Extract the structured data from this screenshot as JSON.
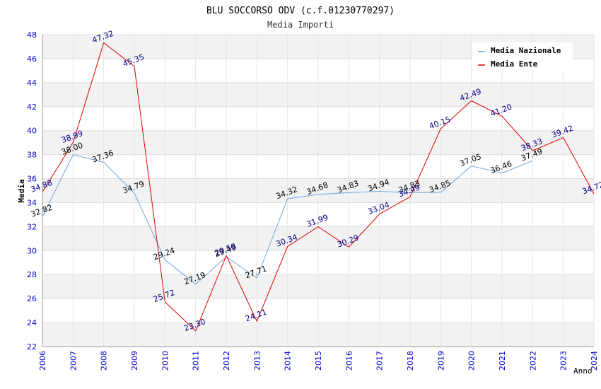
{
  "chart_data": {
    "type": "line",
    "title": "BLU SOCCORSO ODV (c.f.01230770297)",
    "subtitle": "Media Importi",
    "xlabel": "Anno",
    "ylabel": "Media",
    "ylim": [
      22,
      48
    ],
    "yticks": [
      22,
      24,
      26,
      28,
      30,
      32,
      34,
      36,
      38,
      40,
      42,
      44,
      46,
      48
    ],
    "categories": [
      "2006",
      "2007",
      "2008",
      "2009",
      "2010",
      "2011",
      "2012",
      "2013",
      "2014",
      "2015",
      "2016",
      "2017",
      "2018",
      "2019",
      "2020",
      "2021",
      "2022",
      "2023",
      "2024"
    ],
    "legend_position": "top-right",
    "series": [
      {
        "name": "Media Nazionale",
        "color": "#6fa8dc",
        "label_color": "#000000",
        "values": [
          32.82,
          38.0,
          37.36,
          34.79,
          29.24,
          27.19,
          29.49,
          27.71,
          34.32,
          34.68,
          34.83,
          34.94,
          34.83,
          34.85,
          37.05,
          36.46,
          37.49,
          null,
          null
        ],
        "labels": [
          "32.82",
          "38.00",
          "37.36",
          "34.79",
          "29.24",
          "27.19",
          "29.49",
          "27.71",
          "34.32",
          "34.68",
          "34.83",
          "34.94",
          "34.83",
          "34.85",
          "37.05",
          "36.46",
          "37.49",
          null,
          null
        ]
      },
      {
        "name": "Media Ente",
        "color": "#e00000",
        "label_color": "#00008b",
        "values": [
          34.88,
          38.99,
          47.32,
          45.35,
          25.72,
          23.3,
          29.58,
          24.11,
          30.34,
          31.99,
          30.29,
          33.04,
          34.49,
          40.15,
          42.49,
          41.2,
          38.33,
          39.42,
          34.72
        ],
        "labels": [
          "34.88",
          "38.99",
          "47.32",
          "45.35",
          "25.72",
          "23.30",
          "29.58",
          "24.11",
          "30.34",
          "31.99",
          "30.29",
          "33.04",
          "34.49",
          "40.15",
          "42.49",
          "41.20",
          "38.33",
          "39.42",
          "34.72"
        ]
      }
    ],
    "colors": {
      "band": "#f2f2f2",
      "grid": "#dddddd",
      "tick_label": "#0000cc",
      "title": "#000000",
      "subtitle": "#333333"
    }
  }
}
